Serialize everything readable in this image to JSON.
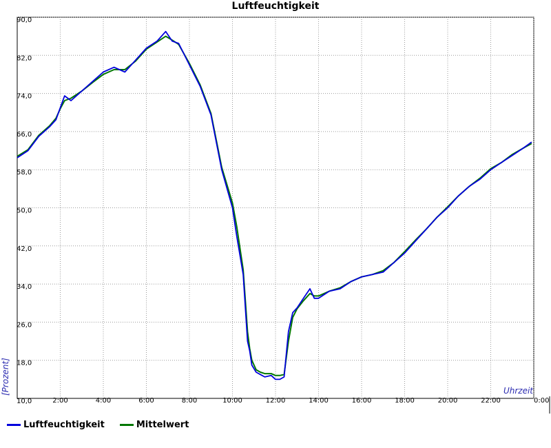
{
  "chart_data": {
    "type": "line",
    "title": "Luftfeuchtigkeit",
    "xlabel": "Uhrzeit",
    "ylabel": "[Prozent]",
    "grid": true,
    "legend_position": "bottom-left",
    "xlim": [
      0,
      24
    ],
    "ylim": [
      10,
      90
    ],
    "x_tick_labels": [
      "2:00",
      "4:00",
      "6:00",
      "8:00",
      "10:00",
      "12:00",
      "14:00",
      "16:00",
      "18:00",
      "20:00",
      "22:00",
      "0:00"
    ],
    "y_tick_labels": [
      "10,0",
      "18,0",
      "26,0",
      "34,0",
      "42,0",
      "50,0",
      "58,0",
      "66,0",
      "74,0",
      "82,0",
      "90,0"
    ],
    "x_unit": "hours of day",
    "series": [
      {
        "name": "Luftfeuchtigkeit",
        "color": "#0000dd",
        "x": [
          0,
          0.5,
          1,
          1.5,
          1.8,
          2,
          2.2,
          2.5,
          3,
          3.5,
          4,
          4.5,
          5,
          5.5,
          6,
          6.5,
          6.9,
          7.2,
          7.5,
          8,
          8.5,
          9,
          9.5,
          10,
          10.2,
          10.5,
          10.7,
          10.8,
          10.9,
          11.1,
          11.3,
          11.5,
          11.8,
          12,
          12.2,
          12.4,
          12.6,
          12.8,
          13,
          13.3,
          13.6,
          13.8,
          14,
          14.5,
          15,
          15.5,
          16,
          16.5,
          17,
          17.5,
          18,
          18.5,
          19,
          19.5,
          20,
          20.5,
          21,
          21.5,
          22,
          22.5,
          23,
          23.5,
          23.9
        ],
        "values": [
          60.5,
          62,
          65,
          67,
          68.5,
          71,
          73.5,
          72.5,
          74.5,
          76.5,
          78.5,
          79.5,
          78.5,
          81,
          83.5,
          85,
          87,
          85,
          84.5,
          80,
          75.5,
          69.5,
          58,
          50,
          44,
          36,
          22,
          20,
          17,
          15.5,
          15,
          14.5,
          14.8,
          14,
          14,
          14.5,
          24,
          28,
          29,
          31,
          33,
          31,
          31,
          32.5,
          33,
          34.5,
          35.5,
          36,
          36.5,
          38.5,
          40.5,
          43,
          45.5,
          48,
          50,
          52.5,
          54.5,
          56,
          58,
          59.5,
          61,
          62.5,
          63.8
        ]
      },
      {
        "name": "Mittelwert",
        "color": "#007700",
        "x": [
          0,
          0.5,
          1,
          1.5,
          1.8,
          2,
          2.2,
          2.5,
          3,
          3.5,
          4,
          4.5,
          5,
          5.5,
          6,
          6.5,
          6.9,
          7.2,
          7.5,
          8,
          8.5,
          9,
          9.5,
          10,
          10.2,
          10.5,
          10.7,
          10.8,
          10.9,
          11.1,
          11.3,
          11.5,
          11.8,
          12,
          12.2,
          12.4,
          12.6,
          12.8,
          13,
          13.3,
          13.6,
          13.8,
          14,
          14.5,
          15,
          15.5,
          16,
          16.5,
          17,
          17.5,
          18,
          18.5,
          19,
          19.5,
          20,
          20.5,
          21,
          21.5,
          22,
          22.5,
          23,
          23.5,
          23.9
        ],
        "values": [
          60.8,
          62.2,
          65.2,
          67.2,
          68.8,
          70.8,
          72.5,
          73,
          74.5,
          76.3,
          78,
          79,
          79,
          80.8,
          83.3,
          84.8,
          86,
          85.2,
          84.3,
          80.3,
          75.8,
          69.8,
          58.5,
          51,
          46,
          37,
          24,
          20.5,
          18,
          16,
          15.5,
          15.2,
          15.2,
          14.8,
          14.8,
          15,
          22,
          27,
          28.8,
          30.5,
          32,
          31.5,
          31.5,
          32.5,
          33.2,
          34.5,
          35.5,
          36,
          36.8,
          38.5,
          40.8,
          43.2,
          45.5,
          48,
          50.2,
          52.5,
          54.5,
          56.2,
          58.2,
          59.5,
          61.2,
          62.5,
          63.5
        ]
      }
    ]
  }
}
